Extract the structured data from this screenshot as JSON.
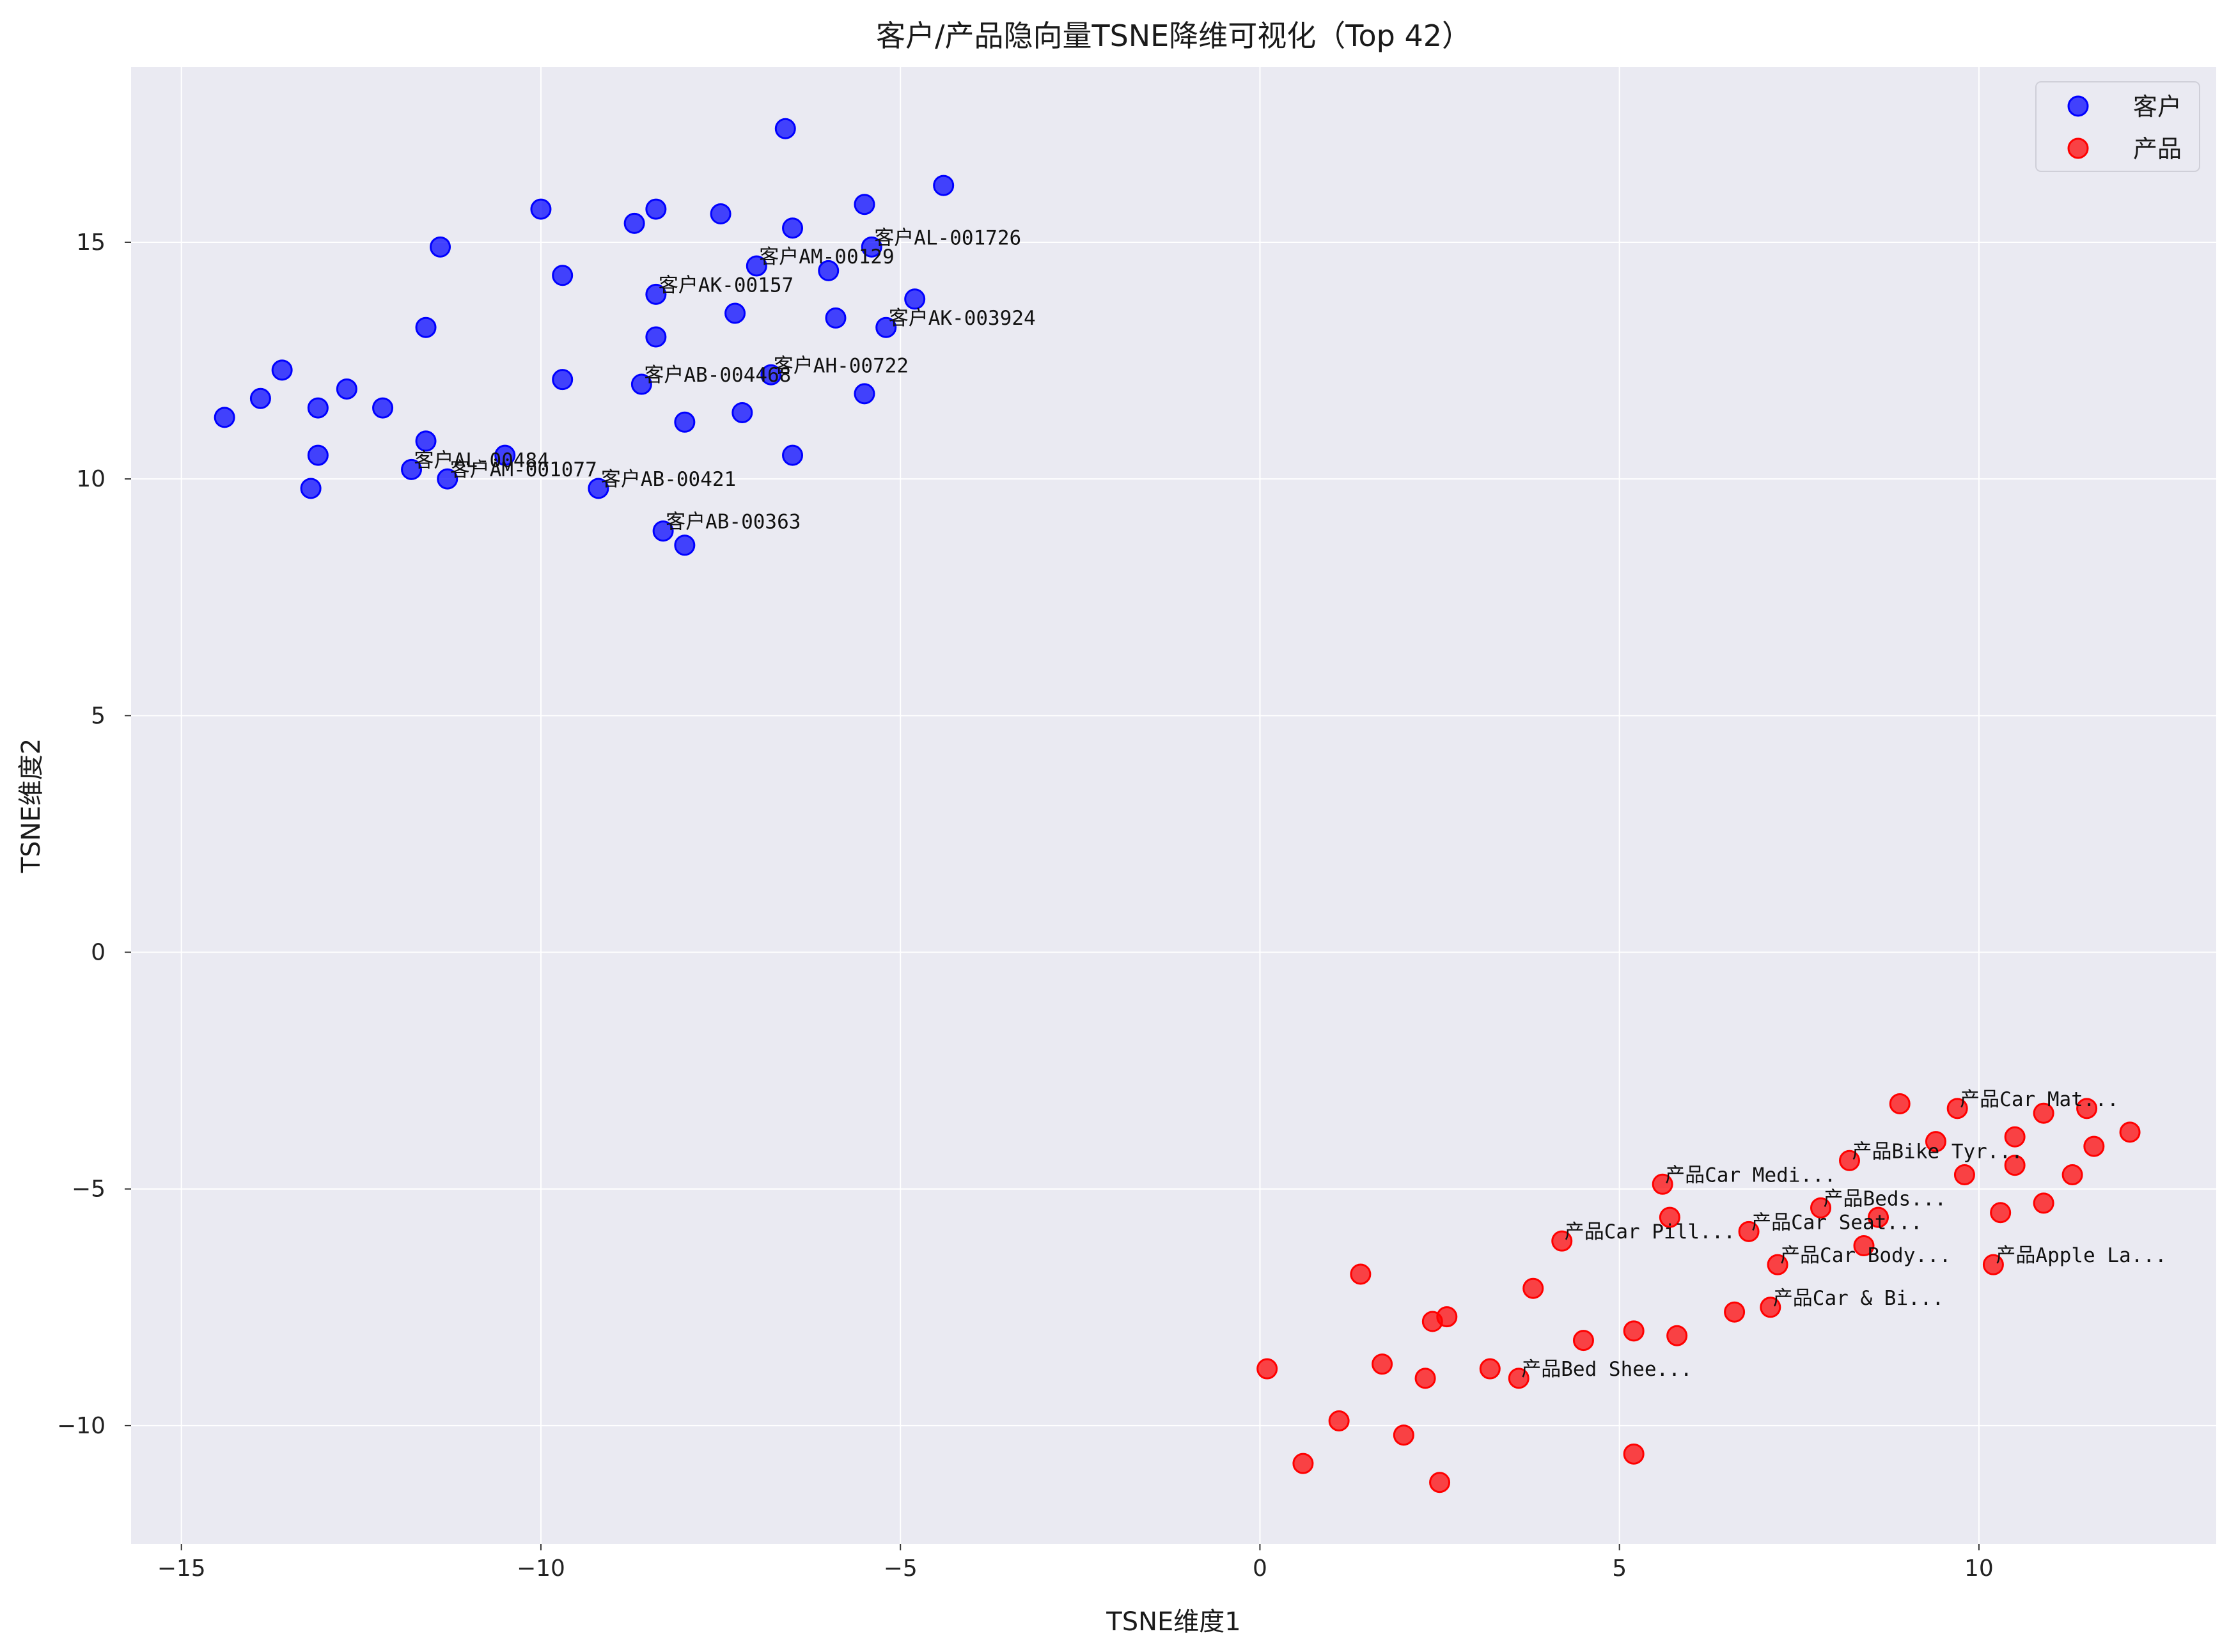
{
  "chart_data": {
    "type": "scatter",
    "title": "客户/产品隐向量TSNE降维可视化（Top 42）",
    "xlabel": "TSNE维度1",
    "ylabel": "TSNE维度2",
    "xlim": [
      -15.7,
      13.3
    ],
    "ylim": [
      -12.5,
      18.7
    ],
    "xticks": [
      -15,
      -10,
      -5,
      0,
      5,
      10
    ],
    "yticks": [
      -10,
      -5,
      0,
      5,
      10,
      15
    ],
    "xtick_labels": [
      "−15",
      "−10",
      "−5",
      "0",
      "5",
      "10"
    ],
    "ytick_labels": [
      "−10",
      "−5",
      "0",
      "5",
      "10",
      "15"
    ],
    "grid": true,
    "legend_position": "top-right",
    "colors": {
      "客户": "#0000ff",
      "产品": "#ff0000",
      "plot_bg": "#eaeaf2",
      "grid": "#ffffff"
    },
    "series": [
      {
        "name": "客户",
        "points": [
          [
            -6.6,
            17.4
          ],
          [
            -4.4,
            16.2
          ],
          [
            -10.0,
            15.7
          ],
          [
            -8.4,
            15.7
          ],
          [
            -5.5,
            15.8
          ],
          [
            -7.5,
            15.6
          ],
          [
            -8.7,
            15.4
          ],
          [
            -6.5,
            15.3
          ],
          [
            -11.4,
            14.9
          ],
          [
            -5.4,
            14.9
          ],
          [
            -7.0,
            14.5
          ],
          [
            -6.0,
            14.4
          ],
          [
            -9.7,
            14.3
          ],
          [
            -8.4,
            13.9
          ],
          [
            -4.8,
            13.8
          ],
          [
            -7.3,
            13.5
          ],
          [
            -5.9,
            13.4
          ],
          [
            -5.2,
            13.2
          ],
          [
            -11.6,
            13.2
          ],
          [
            -8.4,
            13.0
          ],
          [
            -13.6,
            12.3
          ],
          [
            -6.8,
            12.2
          ],
          [
            -9.7,
            12.1
          ],
          [
            -8.6,
            12.0
          ],
          [
            -12.7,
            11.9
          ],
          [
            -5.5,
            11.8
          ],
          [
            -13.9,
            11.7
          ],
          [
            -13.1,
            11.5
          ],
          [
            -12.2,
            11.5
          ],
          [
            -7.2,
            11.4
          ],
          [
            -14.4,
            11.3
          ],
          [
            -8.0,
            11.2
          ],
          [
            -11.6,
            10.8
          ],
          [
            -6.5,
            10.5
          ],
          [
            -13.1,
            10.5
          ],
          [
            -10.5,
            10.5
          ],
          [
            -11.8,
            10.2
          ],
          [
            -11.3,
            10.0
          ],
          [
            -9.2,
            9.8
          ],
          [
            -13.2,
            9.8
          ],
          [
            -8.3,
            8.9
          ],
          [
            -8.0,
            8.6
          ]
        ]
      },
      {
        "name": "产品",
        "points": [
          [
            8.9,
            -3.2
          ],
          [
            9.7,
            -3.3
          ],
          [
            11.5,
            -3.3
          ],
          [
            10.9,
            -3.4
          ],
          [
            12.1,
            -3.8
          ],
          [
            10.5,
            -3.9
          ],
          [
            9.4,
            -4.0
          ],
          [
            11.6,
            -4.1
          ],
          [
            8.2,
            -4.4
          ],
          [
            10.5,
            -4.5
          ],
          [
            9.8,
            -4.7
          ],
          [
            11.3,
            -4.7
          ],
          [
            5.6,
            -4.9
          ],
          [
            10.9,
            -5.3
          ],
          [
            7.8,
            -5.4
          ],
          [
            10.3,
            -5.5
          ],
          [
            5.7,
            -5.6
          ],
          [
            8.6,
            -5.6
          ],
          [
            6.8,
            -5.9
          ],
          [
            4.2,
            -6.1
          ],
          [
            8.4,
            -6.2
          ],
          [
            7.2,
            -6.6
          ],
          [
            10.2,
            -6.6
          ],
          [
            1.4,
            -6.8
          ],
          [
            3.8,
            -7.1
          ],
          [
            7.1,
            -7.5
          ],
          [
            6.6,
            -7.6
          ],
          [
            2.6,
            -7.7
          ],
          [
            2.4,
            -7.8
          ],
          [
            5.2,
            -8.0
          ],
          [
            5.8,
            -8.1
          ],
          [
            4.5,
            -8.2
          ],
          [
            1.7,
            -8.7
          ],
          [
            0.1,
            -8.8
          ],
          [
            3.2,
            -8.8
          ],
          [
            2.3,
            -9.0
          ],
          [
            3.6,
            -9.0
          ],
          [
            1.1,
            -9.9
          ],
          [
            2.0,
            -10.2
          ],
          [
            5.2,
            -10.6
          ],
          [
            0.6,
            -10.8
          ],
          [
            2.5,
            -11.2
          ]
        ]
      }
    ],
    "annotations": [
      {
        "text": "客户AL-001726",
        "x": -5.4,
        "y": 14.9
      },
      {
        "text": "客户AM-00129",
        "x": -7.0,
        "y": 14.5
      },
      {
        "text": "客户AK-00157",
        "x": -8.4,
        "y": 13.9
      },
      {
        "text": "客户AK-003924",
        "x": -5.2,
        "y": 13.2
      },
      {
        "text": "客户AH-00722",
        "x": -6.8,
        "y": 12.2
      },
      {
        "text": "客户AB-004468",
        "x": -8.6,
        "y": 12.0
      },
      {
        "text": "客户AL-00484",
        "x": -11.8,
        "y": 10.2
      },
      {
        "text": "客户AM-001077",
        "x": -11.3,
        "y": 10.0
      },
      {
        "text": "客户AB-00421",
        "x": -9.2,
        "y": 9.8
      },
      {
        "text": "客户AB-00363",
        "x": -8.3,
        "y": 8.9
      },
      {
        "text": "产品Car Mat...",
        "x": 9.7,
        "y": -3.3
      },
      {
        "text": "产品Bike Tyr...",
        "x": 8.2,
        "y": -4.4
      },
      {
        "text": "产品Car Medi...",
        "x": 5.6,
        "y": -4.9
      },
      {
        "text": "产品Beds...",
        "x": 7.8,
        "y": -5.4
      },
      {
        "text": "产品Car Seat...",
        "x": 6.8,
        "y": -5.9
      },
      {
        "text": "产品Car Pill...",
        "x": 4.2,
        "y": -6.1
      },
      {
        "text": "产品Car Body...",
        "x": 7.2,
        "y": -6.6
      },
      {
        "text": "产品Apple La...",
        "x": 10.2,
        "y": -6.6
      },
      {
        "text": "产品Car & Bi...",
        "x": 7.1,
        "y": -7.5
      },
      {
        "text": "产品Bed Shee...",
        "x": 3.6,
        "y": -9.0
      }
    ]
  }
}
